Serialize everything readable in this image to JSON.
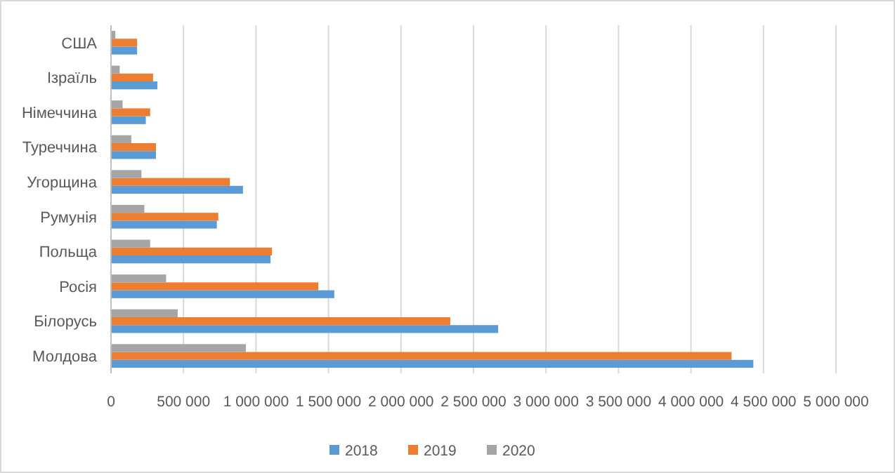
{
  "chart_data": {
    "type": "bar",
    "orientation": "horizontal",
    "categories": [
      "США",
      "Ізраїль",
      "Німеччина",
      "Туреччина",
      "Угорщина",
      "Румунія",
      "Польща",
      "Росія",
      "Білорусь",
      "Молдова"
    ],
    "series": [
      {
        "name": "2018",
        "color": "#5b9bd5",
        "values": [
          180000,
          320000,
          240000,
          310000,
          910000,
          730000,
          1100000,
          1540000,
          2670000,
          4430000
        ]
      },
      {
        "name": "2019",
        "color": "#ed7d31",
        "values": [
          180000,
          290000,
          270000,
          310000,
          820000,
          740000,
          1110000,
          1430000,
          2340000,
          4280000
        ]
      },
      {
        "name": "2020",
        "color": "#a5a5a5",
        "values": [
          30000,
          60000,
          80000,
          140000,
          210000,
          230000,
          270000,
          380000,
          460000,
          930000
        ]
      }
    ],
    "xlim": [
      0,
      5000000
    ],
    "xticks": [
      0,
      {
        "value": 500000,
        "label": "500 000"
      },
      {
        "value": 1000000,
        "label": "1 000 000"
      },
      {
        "value": 1500000,
        "label": "1 500 000"
      },
      {
        "value": 2000000,
        "label": "2 000 000"
      },
      {
        "value": 2500000,
        "label": "2 500 000"
      },
      {
        "value": 3000000,
        "label": "3 000 000"
      },
      {
        "value": 3500000,
        "label": "3 500 000"
      },
      {
        "value": 4000000,
        "label": "4 000 000"
      },
      {
        "value": 4500000,
        "label": "4 500 000"
      },
      {
        "value": 5000000,
        "label": "5 000 000"
      }
    ],
    "grid": "x",
    "legend": "bottom"
  }
}
